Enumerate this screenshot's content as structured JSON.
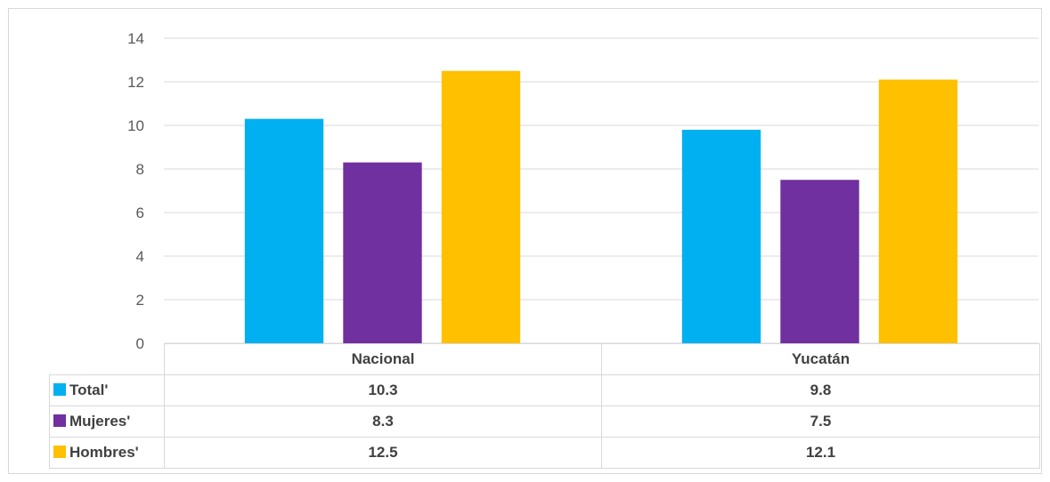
{
  "chart_data": {
    "type": "bar",
    "categories": [
      "Nacional",
      "Yucatán"
    ],
    "series": [
      {
        "name": "Total'",
        "values": [
          10.3,
          9.8
        ],
        "color": "#00b0f0"
      },
      {
        "name": "Mujeres'",
        "values": [
          8.3,
          7.5
        ],
        "color": "#7030a0"
      },
      {
        "name": "Hombres'",
        "values": [
          12.5,
          12.1
        ],
        "color": "#ffc000"
      }
    ],
    "y_ticks": [
      "0",
      "2",
      "4",
      "6",
      "8",
      "10",
      "12",
      "14"
    ],
    "ylim": [
      0,
      14
    ],
    "grid": true,
    "legend": "data-table",
    "table_values": [
      [
        "10.3",
        "9.8"
      ],
      [
        "8.3",
        "7.5"
      ],
      [
        "12.5",
        "12.1"
      ]
    ]
  }
}
